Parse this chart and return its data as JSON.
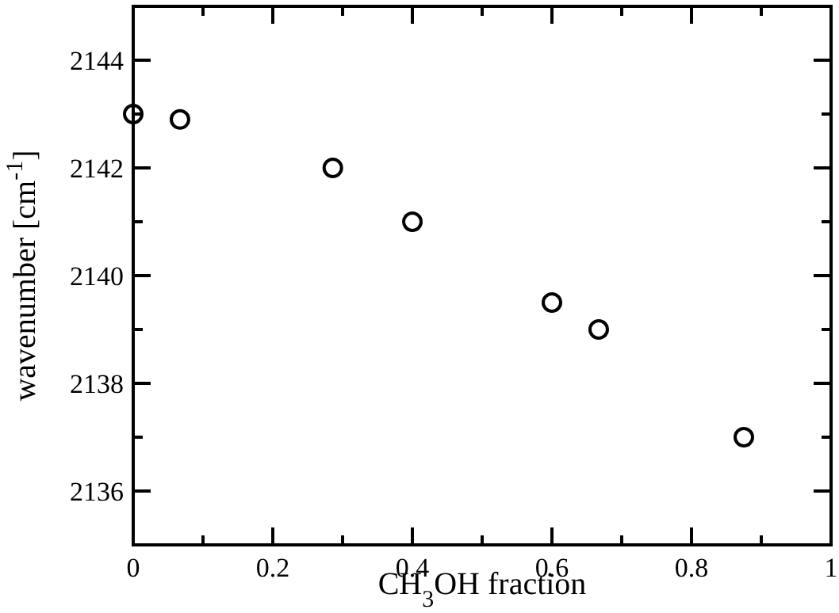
{
  "chart_data": {
    "type": "scatter",
    "xlabel": "CH$_{3}$OH fraction",
    "ylabel": "wavenumber [cm$^{-1}$]",
    "x": [
      0,
      0.067,
      0.286,
      0.4,
      0.6,
      0.667,
      0.875
    ],
    "series": [
      {
        "color": "#000000",
        "values": [
          2143,
          2142.9,
          2142,
          2141,
          2139.5,
          2139,
          2137
        ]
      }
    ],
    "marker": "circle",
    "grid": false,
    "xlim": [
      0,
      1
    ],
    "xticks": [
      0,
      {
        "value": 0.1,
        "label": null
      },
      0.2,
      {
        "value": 0.3,
        "label": null
      },
      0.4,
      {
        "value": 0.5,
        "label": null
      },
      0.6,
      {
        "value": 0.7,
        "label": null
      },
      0.8,
      {
        "value": 0.9,
        "label": null
      },
      1
    ],
    "ylim": [
      2135,
      2145
    ],
    "yticks": [
      {
        "value": 2135,
        "label": null
      },
      2136,
      {
        "value": 2137,
        "label": null
      },
      2138,
      {
        "value": 2139,
        "label": null
      },
      2140,
      {
        "value": 2141,
        "label": null
      },
      2142,
      {
        "value": 2143,
        "label": null
      },
      2144,
      {
        "value": 2145,
        "label": null
      }
    ]
  }
}
